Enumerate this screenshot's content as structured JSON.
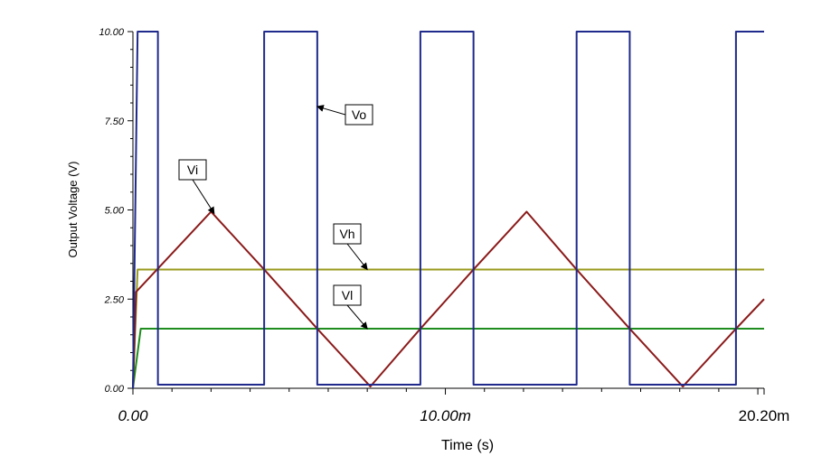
{
  "chart_data": {
    "type": "line",
    "xlabel": "Time (s)",
    "ylabel": "Output Voltage (V)",
    "xlim": [
      0,
      0.0202
    ],
    "ylim": [
      0,
      10
    ],
    "grid": false,
    "x_ticks": [
      {
        "value": 0,
        "label": "0.00"
      },
      {
        "value": 0.01,
        "label": "10.00m"
      },
      {
        "value": 0.0202,
        "label": "20.20m"
      }
    ],
    "y_ticks": [
      {
        "value": 0,
        "label": "0.00"
      },
      {
        "value": 2.5,
        "label": "2.50"
      },
      {
        "value": 5,
        "label": "5.00"
      },
      {
        "value": 7.5,
        "label": "7.50"
      },
      {
        "value": 10,
        "label": "10.00"
      }
    ],
    "series": [
      {
        "name": "Vo",
        "color": "#1f2a8c",
        "x": [
          0,
          0.00015,
          0.0008,
          0.0008,
          0.0042,
          0.0042,
          0.0059,
          0.0059,
          0.0092,
          0.0092,
          0.0109,
          0.0109,
          0.0142,
          0.0142,
          0.0159,
          0.0159,
          0.0193,
          0.0193,
          0.0202
        ],
        "y": [
          0,
          10,
          10,
          0.1,
          0.1,
          10,
          10,
          0.1,
          0.1,
          10,
          10,
          0.1,
          0.1,
          10,
          10,
          0.1,
          0.1,
          10,
          10
        ]
      },
      {
        "name": "Vi",
        "color": "#8b1a1a",
        "x": [
          0,
          0.0001,
          0.0025,
          0.0042,
          0.0059,
          0.0076,
          0.0092,
          0.0109,
          0.0126,
          0.0142,
          0.0159,
          0.0176,
          0.0193,
          0.0202
        ],
        "y": [
          0,
          2.7,
          4.95,
          3.33,
          1.67,
          0.05,
          1.67,
          3.33,
          4.95,
          3.33,
          1.67,
          0.05,
          1.67,
          2.5
        ]
      },
      {
        "name": "Vh",
        "color": "#9a9a1e",
        "x": [
          0,
          0.00015,
          0.0202
        ],
        "y": [
          0,
          3.33,
          3.33
        ]
      },
      {
        "name": "Vl",
        "color": "#1e8c1e",
        "x": [
          0,
          0.00025,
          0.0202
        ],
        "y": [
          0,
          1.67,
          1.67
        ]
      }
    ],
    "annotations": [
      {
        "label": "Vo",
        "target_series": "Vo",
        "target": [
          0.0059,
          7.9
        ]
      },
      {
        "label": "Vi",
        "target_series": "Vi",
        "target": [
          0.0026,
          4.9
        ]
      },
      {
        "label": "Vh",
        "target_series": "Vh",
        "target": [
          0.0075,
          3.33
        ]
      },
      {
        "label": "Vl",
        "target_series": "Vl",
        "target": [
          0.0075,
          1.67
        ]
      }
    ]
  }
}
